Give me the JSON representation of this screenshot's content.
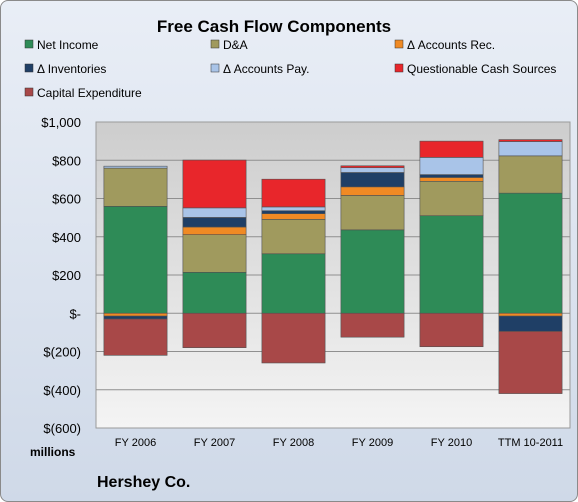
{
  "chart_data": {
    "type": "bar",
    "stacked": true,
    "title": "Free Cash Flow Components",
    "unit_label": "millions",
    "company": "Hershey Co.",
    "categories": [
      "FY 2006",
      "FY 2007",
      "FY 2008",
      "FY 2009",
      "FY 2010",
      "TTM 10-2011"
    ],
    "ylim": [
      -600,
      1000
    ],
    "y_ticks": [
      1000,
      800,
      600,
      400,
      200,
      0,
      -200,
      -400,
      -600
    ],
    "y_tick_labels": [
      "$1,000",
      "$800",
      "$600",
      "$400",
      "$200",
      "$-",
      "$(200)",
      "$(400)",
      "$(600)"
    ],
    "grid": true,
    "legend_position": "top",
    "series": [
      {
        "name": "Net Income",
        "color": "#2e8b57",
        "values": [
          559,
          214,
          311,
          436,
          510,
          628
        ]
      },
      {
        "name": "D&A",
        "color": "#a09a5e",
        "values": [
          200,
          197,
          180,
          180,
          180,
          195
        ]
      },
      {
        "name": "Δ Accounts Rec.",
        "color": "#f08a24",
        "values": [
          -15,
          40,
          30,
          45,
          20,
          -15
        ]
      },
      {
        "name": "Δ Inventories",
        "color": "#1f3f66",
        "values": [
          -15,
          50,
          15,
          75,
          15,
          -80
        ]
      },
      {
        "name": "Δ Accounts Pay.",
        "color": "#a9c4e8",
        "values": [
          10,
          50,
          20,
          25,
          90,
          75
        ]
      },
      {
        "name": "Questionable Cash Sources",
        "color": "#e8262b",
        "values": [
          0,
          250,
          145,
          10,
          85,
          10
        ]
      },
      {
        "name": "Capital Expenditure",
        "color": "#a84848",
        "values": [
          -190,
          -180,
          -260,
          -125,
          -175,
          -325
        ]
      }
    ]
  }
}
